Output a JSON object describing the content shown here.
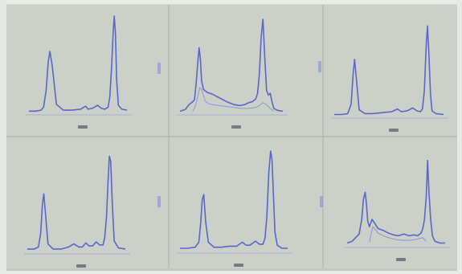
{
  "colors": {
    "panel_bg": "#cbd1c9",
    "grid_line": "#b3bab2",
    "trace": "#5560c8",
    "trace_faint": "#7f88d8",
    "label_ink": "#303445"
  },
  "chart_data": [
    {
      "type": "line",
      "panel": "top-left",
      "caption": "",
      "grid": false,
      "series": [
        {
          "x": [
            0,
            4,
            7,
            8.5,
            10,
            11.2,
            12.2,
            13.5,
            16,
            20,
            25,
            30,
            33,
            34.5,
            37,
            40,
            42,
            44,
            46,
            47,
            48,
            49,
            49.6,
            50.3,
            51,
            52,
            54,
            57
          ],
          "values": [
            0.03,
            0.03,
            0.04,
            0.07,
            0.24,
            0.53,
            0.64,
            0.5,
            0.1,
            0.04,
            0.04,
            0.05,
            0.08,
            0.05,
            0.06,
            0.09,
            0.06,
            0.05,
            0.07,
            0.17,
            0.45,
            0.84,
            1.0,
            0.82,
            0.35,
            0.09,
            0.05,
            0.04
          ]
        }
      ]
    },
    {
      "type": "line",
      "panel": "top-middle",
      "caption": "",
      "grid": false,
      "series": [
        {
          "x": [
            0,
            3,
            5,
            7,
            8,
            9,
            10,
            10.6,
            11.3,
            12,
            13,
            15,
            18,
            22,
            26,
            30,
            33,
            36,
            38,
            40,
            42,
            43,
            44,
            45,
            46,
            47,
            48,
            49,
            50,
            51,
            52,
            54,
            57
          ],
          "values": [
            0.03,
            0.05,
            0.1,
            0.13,
            0.15,
            0.33,
            0.58,
            0.7,
            0.58,
            0.35,
            0.26,
            0.23,
            0.21,
            0.17,
            0.13,
            0.1,
            0.09,
            0.1,
            0.12,
            0.13,
            0.16,
            0.22,
            0.42,
            0.82,
            1.0,
            0.6,
            0.25,
            0.2,
            0.22,
            0.13,
            0.06,
            0.04,
            0.03
          ]
        },
        {
          "x": [
            7,
            8,
            9,
            10,
            11,
            12,
            13,
            14,
            15,
            16,
            18,
            22,
            26,
            30,
            34,
            38,
            42,
            44,
            46,
            48,
            50,
            52
          ],
          "values": [
            0.03,
            0.06,
            0.12,
            0.2,
            0.28,
            0.26,
            0.2,
            0.14,
            0.12,
            0.11,
            0.1,
            0.09,
            0.08,
            0.07,
            0.06,
            0.06,
            0.07,
            0.09,
            0.12,
            0.1,
            0.06,
            0.03
          ]
        }
      ]
    },
    {
      "type": "line",
      "panel": "top-right",
      "caption": "",
      "grid": false,
      "series": [
        {
          "x": [
            0,
            4,
            7,
            8.8,
            9.8,
            10.6,
            11.6,
            13,
            16,
            20,
            25,
            30,
            33,
            35,
            38,
            41,
            43,
            45,
            46,
            47,
            48,
            48.6,
            49.3,
            50.2,
            51,
            53,
            57
          ],
          "values": [
            0.03,
            0.03,
            0.04,
            0.14,
            0.45,
            0.62,
            0.4,
            0.08,
            0.04,
            0.04,
            0.05,
            0.06,
            0.09,
            0.06,
            0.07,
            0.1,
            0.07,
            0.06,
            0.09,
            0.28,
            0.78,
            0.98,
            0.72,
            0.25,
            0.07,
            0.04,
            0.03
          ]
        }
      ]
    },
    {
      "type": "line",
      "panel": "bottom-left",
      "caption": "",
      "grid": false,
      "series": [
        {
          "x": [
            0,
            4,
            6.5,
            7.8,
            8.8,
            9.6,
            10.6,
            12,
            15,
            20,
            24,
            27,
            30,
            32,
            34,
            36,
            38,
            40,
            42,
            44,
            45,
            46,
            47,
            47.7,
            48.5,
            49.4,
            50.5,
            53,
            57
          ],
          "values": [
            0.04,
            0.04,
            0.06,
            0.2,
            0.48,
            0.58,
            0.38,
            0.09,
            0.04,
            0.04,
            0.06,
            0.09,
            0.06,
            0.06,
            0.1,
            0.07,
            0.07,
            0.11,
            0.08,
            0.08,
            0.15,
            0.35,
            0.72,
            0.95,
            0.9,
            0.5,
            0.12,
            0.05,
            0.04
          ]
        }
      ]
    },
    {
      "type": "line",
      "panel": "bottom-middle",
      "caption": "",
      "grid": false,
      "series": [
        {
          "x": [
            0,
            4,
            8,
            10,
            11,
            11.8,
            12.6,
            13.6,
            15,
            18,
            22,
            26,
            30,
            33,
            35,
            37,
            40,
            42,
            44,
            45,
            46,
            47,
            48,
            48.7,
            49.5,
            50.3,
            51.5,
            54,
            57
          ],
          "values": [
            0.04,
            0.04,
            0.05,
            0.1,
            0.3,
            0.52,
            0.57,
            0.3,
            0.1,
            0.05,
            0.05,
            0.06,
            0.06,
            0.1,
            0.07,
            0.07,
            0.11,
            0.08,
            0.08,
            0.14,
            0.35,
            0.78,
            1.0,
            0.92,
            0.55,
            0.2,
            0.07,
            0.04,
            0.04
          ]
        }
      ]
    },
    {
      "type": "line",
      "panel": "bottom-right",
      "caption": "",
      "grid": false,
      "series": [
        {
          "x": [
            0,
            3,
            5,
            7,
            8.5,
            9.5,
            10.5,
            11.2,
            12,
            13,
            14.5,
            16,
            18,
            21,
            24,
            27,
            30,
            33,
            36,
            39,
            41,
            43,
            44,
            45,
            46,
            46.8,
            47.6,
            48.6,
            49.6,
            51,
            54,
            57
          ],
          "values": [
            0.04,
            0.06,
            0.1,
            0.14,
            0.3,
            0.52,
            0.6,
            0.48,
            0.28,
            0.22,
            0.3,
            0.26,
            0.2,
            0.18,
            0.15,
            0.13,
            0.12,
            0.14,
            0.12,
            0.13,
            0.12,
            0.15,
            0.2,
            0.3,
            0.55,
            0.95,
            0.6,
            0.3,
            0.12,
            0.06,
            0.04,
            0.04
          ]
        },
        {
          "x": [
            13,
            14,
            15,
            16,
            18,
            21,
            24,
            28,
            32,
            36,
            40,
            44,
            46
          ],
          "values": [
            0.05,
            0.15,
            0.22,
            0.2,
            0.15,
            0.12,
            0.1,
            0.08,
            0.07,
            0.07,
            0.08,
            0.1,
            0.06
          ]
        }
      ]
    }
  ]
}
